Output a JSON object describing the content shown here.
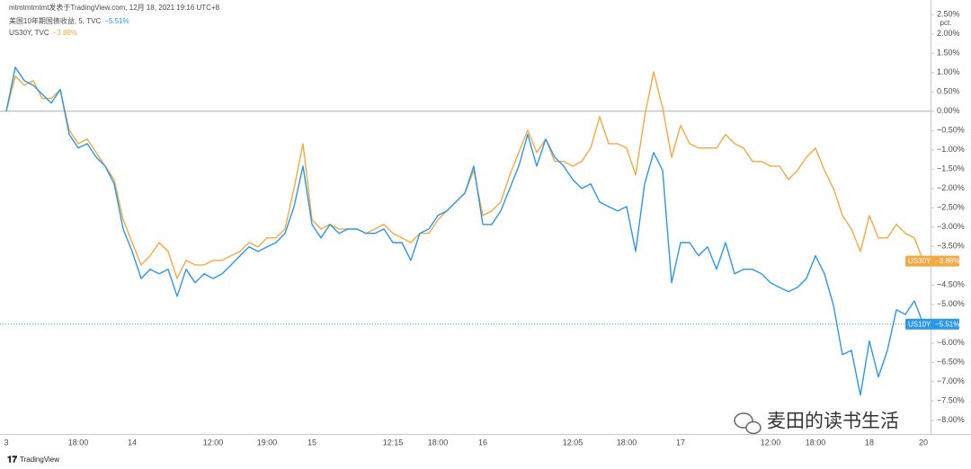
{
  "chart_data": {
    "type": "line",
    "attribution": "mtmtmtmtmt发表于TradingView.com, 12月 18, 2021 19:16 UTC+8",
    "y_unit": "pct.",
    "brand": "TradingView",
    "watermark": "麦田的读书生活",
    "baseline": 0,
    "categories": [
      "3",
      null,
      null,
      null,
      null,
      null,
      null,
      null,
      "18:00",
      null,
      null,
      null,
      null,
      null,
      "14",
      null,
      null,
      null,
      null,
      null,
      null,
      null,
      null,
      "12:00",
      null,
      null,
      null,
      null,
      null,
      "19:00",
      null,
      null,
      null,
      null,
      "15",
      null,
      null,
      null,
      null,
      null,
      null,
      null,
      null,
      "12:15",
      null,
      null,
      null,
      null,
      "18:00",
      null,
      null,
      null,
      null,
      "16",
      null,
      null,
      null,
      null,
      null,
      null,
      null,
      null,
      null,
      "12:05",
      null,
      null,
      null,
      null,
      null,
      "18:00",
      null,
      null,
      null,
      null,
      null,
      "17",
      null,
      null,
      null,
      null,
      null,
      null,
      null,
      null,
      null,
      "12:00",
      null,
      null,
      null,
      null,
      "18:00",
      null,
      null,
      null,
      null,
      null,
      "18",
      null,
      null,
      null,
      null,
      null,
      "20"
    ],
    "series": [
      {
        "name": "美国10年期国债收益, 5, TVC",
        "badge": "US10Y",
        "color": "#2a98e8",
        "last_value_label": "−5.51%",
        "price_line": true,
        "values": [
          0,
          1.14,
          0.79,
          0.67,
          0.44,
          0.21,
          0.56,
          -0.6,
          -0.95,
          -0.84,
          -1.19,
          -1.42,
          -1.88,
          -3.05,
          -3.63,
          -4.33,
          -4.09,
          -4.21,
          -4.09,
          -4.79,
          -4.09,
          -4.44,
          -4.21,
          -4.33,
          -4.21,
          -3.98,
          -3.74,
          -3.51,
          -3.63,
          -3.51,
          -3.4,
          -3.16,
          -2.47,
          -1.42,
          -2.93,
          -3.28,
          -2.93,
          -3.16,
          -3.05,
          -3.05,
          -3.16,
          -3.16,
          -3.05,
          -3.4,
          -3.4,
          -3.86,
          -3.16,
          -3.05,
          -2.7,
          -2.58,
          -2.35,
          -2.12,
          -1.42,
          -2.93,
          -2.93,
          -2.58,
          -2.0,
          -1.42,
          -0.6,
          -1.42,
          -0.72,
          -1.19,
          -1.42,
          -1.77,
          -2.0,
          -1.88,
          -2.35,
          -2.47,
          -2.58,
          -2.47,
          -3.63,
          -1.88,
          -1.07,
          -1.53,
          -4.44,
          -3.4,
          -3.4,
          -3.74,
          -3.51,
          -4.09,
          -3.4,
          -4.21,
          -4.09,
          -4.09,
          -4.21,
          -4.44,
          -4.56,
          -4.67,
          -4.56,
          -4.33,
          -3.74,
          -4.21,
          -5.02,
          -6.3,
          -6.19,
          -7.35,
          -5.95,
          -6.88,
          -6.19,
          -5.14,
          -5.26,
          -4.91,
          -5.51
        ]
      },
      {
        "name": "US30Y, TVC",
        "badge": "US30Y",
        "color": "#f4a940",
        "last_value_label": "−3.88%",
        "price_line": false,
        "values": [
          0,
          0.91,
          0.67,
          0.79,
          0.33,
          0.33,
          0.56,
          -0.49,
          -0.84,
          -0.72,
          -1.07,
          -1.42,
          -1.77,
          -2.81,
          -3.4,
          -3.98,
          -3.74,
          -3.4,
          -3.63,
          -4.33,
          -3.86,
          -3.98,
          -3.98,
          -3.86,
          -3.86,
          -3.74,
          -3.63,
          -3.4,
          -3.51,
          -3.28,
          -3.28,
          -3.05,
          -2.0,
          -0.84,
          -2.81,
          -3.05,
          -2.93,
          -3.05,
          -3.05,
          -3.05,
          -3.16,
          -3.05,
          -2.93,
          -3.16,
          -3.28,
          -3.4,
          -3.16,
          -3.16,
          -2.81,
          -2.58,
          -2.35,
          -2.12,
          -1.53,
          -2.7,
          -2.58,
          -2.35,
          -1.65,
          -1.07,
          -0.49,
          -1.07,
          -0.72,
          -1.3,
          -1.3,
          -1.42,
          -1.3,
          -0.95,
          -0.14,
          -0.84,
          -0.84,
          -0.95,
          -1.65,
          -0.14,
          1.02,
          0.09,
          -1.19,
          -0.37,
          -0.84,
          -0.95,
          -0.95,
          -0.95,
          -0.6,
          -0.84,
          -0.95,
          -1.3,
          -1.3,
          -1.42,
          -1.42,
          -1.77,
          -1.53,
          -1.19,
          -0.95,
          -1.53,
          -2.0,
          -2.7,
          -3.05,
          -3.63,
          -2.7,
          -3.28,
          -3.28,
          -2.93,
          -3.16,
          -3.28,
          -3.88
        ]
      }
    ],
    "ylim": [
      -8.4,
      2.6
    ],
    "yticks": [
      {
        "value": 2.5,
        "label": "2.50%"
      },
      {
        "value": 2,
        "label": "2.00%"
      },
      {
        "value": 1.5,
        "label": "1.50%"
      },
      {
        "value": 1,
        "label": "1.00%"
      },
      {
        "value": 0.5,
        "label": "0.50%"
      },
      {
        "value": 0,
        "label": "0.00%"
      },
      {
        "value": -0.5,
        "label": "−0.50%"
      },
      {
        "value": -1,
        "label": "−1.00%"
      },
      {
        "value": -1.5,
        "label": "−1.50%"
      },
      {
        "value": -2,
        "label": "−2.00%"
      },
      {
        "value": -2.5,
        "label": "−2.50%"
      },
      {
        "value": -3,
        "label": "−3.00%"
      },
      {
        "value": -3.5,
        "label": "−3.50%"
      },
      {
        "value": -4.5,
        "label": "−4.50%"
      },
      {
        "value": -5,
        "label": "−5.00%"
      },
      {
        "value": -6,
        "label": "−6.00%"
      },
      {
        "value": -6.5,
        "label": "−6.50%"
      },
      {
        "value": -7,
        "label": "−7.00%"
      },
      {
        "value": -7.5,
        "label": "−7.50%"
      },
      {
        "value": -8,
        "label": "−8.00%"
      }
    ],
    "grid": false
  }
}
